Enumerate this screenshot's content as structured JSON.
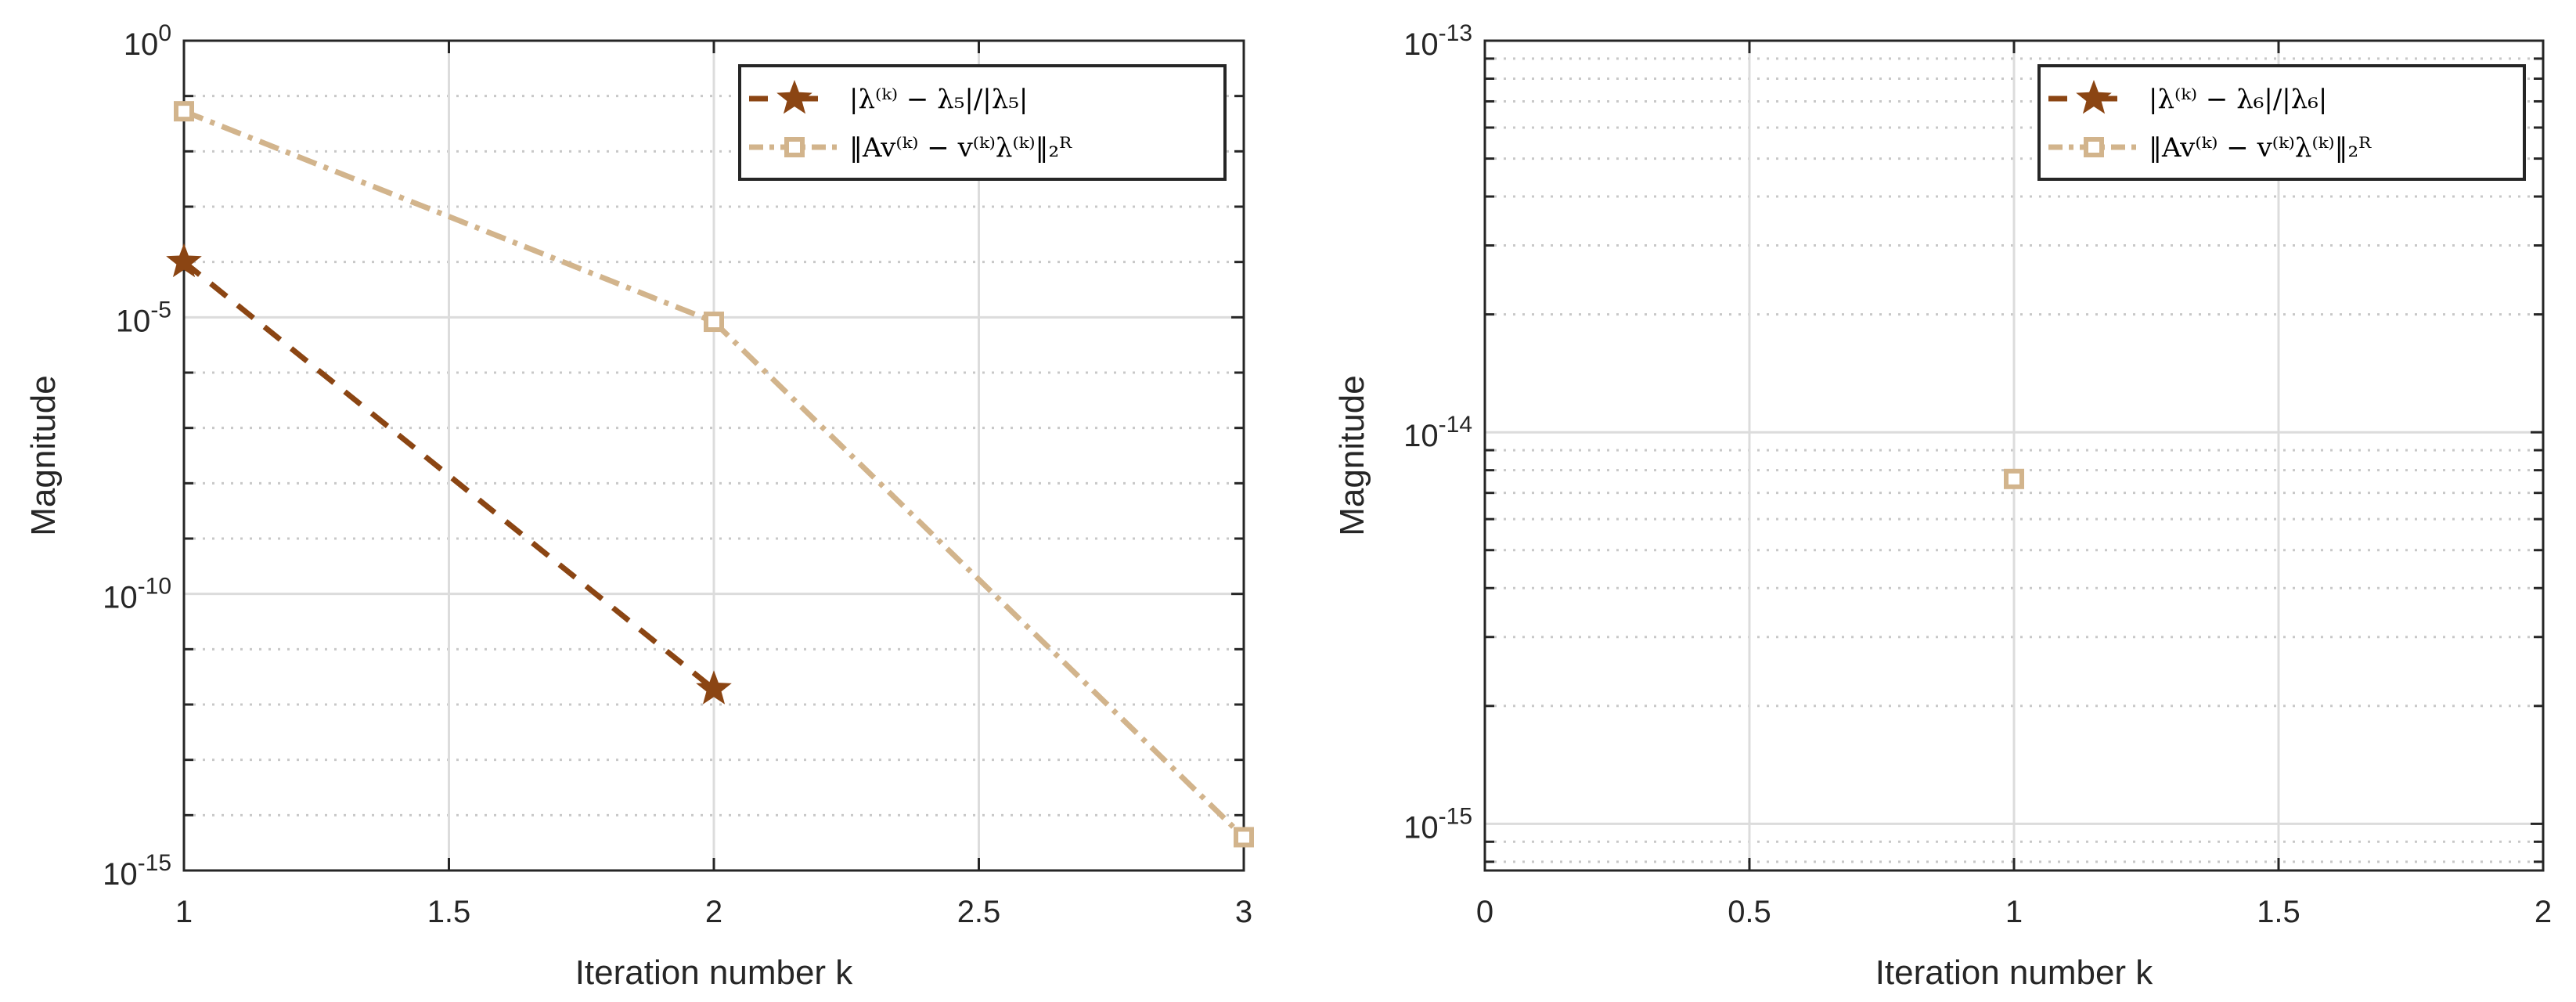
{
  "colors": {
    "series1": "#8B4513",
    "series2": "#D2B48C",
    "axis": "#262626",
    "grid": "#dcdcdc",
    "minor_grid": "#c8c8c8"
  },
  "chart_data": [
    {
      "type": "line",
      "xlabel": "Iteration number k",
      "ylabel": "Magnitude",
      "xlim": [
        1,
        3
      ],
      "ylim": [
        1e-15,
        1
      ],
      "yscale": "log",
      "grid": true,
      "legend_position": "top-right",
      "xticks": [
        "1",
        "1.5",
        "2",
        "2.5",
        "3"
      ],
      "yticks": [
        {
          "base": "10",
          "exp": "-15"
        },
        {
          "base": "10",
          "exp": "-10"
        },
        {
          "base": "10",
          "exp": "-5"
        },
        {
          "base": "10",
          "exp": "0"
        }
      ],
      "series": [
        {
          "name": "|λ⁽ᵏ⁾ − λ₅|/|λ₅|",
          "marker": "star",
          "linestyle": "dashed",
          "x": [
            1,
            2
          ],
          "y": [
            0.0001,
            1.9e-12
          ]
        },
        {
          "name": "‖Av⁽ᵏ⁾ − v⁽ᵏ⁾λ⁽ᵏ⁾‖₂ᴿ",
          "marker": "square",
          "linestyle": "dash-dot",
          "x": [
            1,
            2,
            3
          ],
          "y": [
            0.053,
            8.3e-06,
            4e-15
          ]
        }
      ]
    },
    {
      "type": "line",
      "xlabel": "Iteration number k",
      "ylabel": "Magnitude",
      "xlim": [
        0,
        2
      ],
      "ylim": [
        7.6e-16,
        1e-13
      ],
      "yscale": "log",
      "grid": true,
      "legend_position": "top-right",
      "xticks": [
        "0",
        "0.5",
        "1",
        "1.5",
        "2"
      ],
      "yticks": [
        {
          "base": "10",
          "exp": "-15"
        },
        {
          "base": "10",
          "exp": "-14"
        },
        {
          "base": "10",
          "exp": "-13"
        }
      ],
      "series": [
        {
          "name": "|λ⁽ᵏ⁾ − λ₆|/|λ₆|",
          "marker": "star",
          "linestyle": "dashed",
          "x": [],
          "y": []
        },
        {
          "name": "‖Av⁽ᵏ⁾ − v⁽ᵏ⁾λ⁽ᵏ⁾‖₂ᴿ",
          "marker": "square",
          "linestyle": "dash-dot",
          "x": [
            1
          ],
          "y": [
            7.6e-15
          ]
        }
      ]
    }
  ]
}
